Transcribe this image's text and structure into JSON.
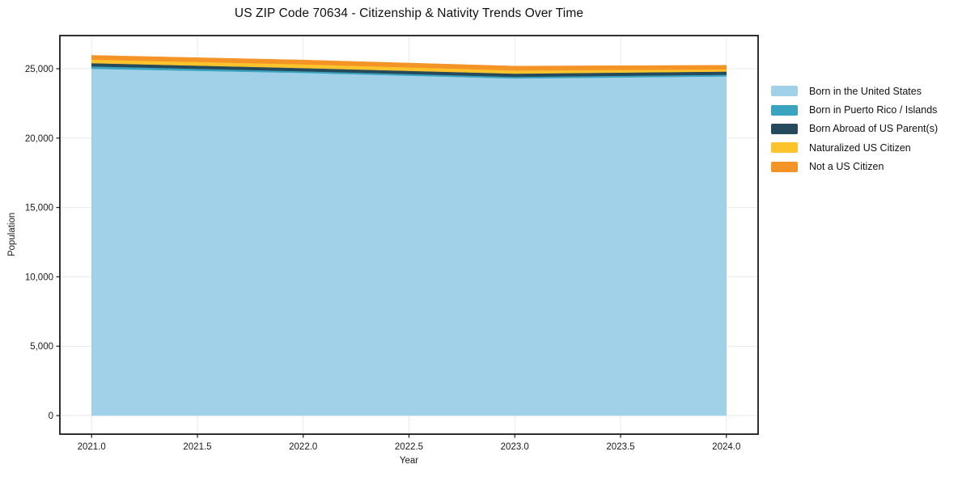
{
  "chart_data": {
    "type": "area",
    "stacked": true,
    "title": "US ZIP Code 70634 - Citizenship & Nativity Trends Over Time",
    "xlabel": "Year",
    "ylabel": "Population",
    "x": [
      2021,
      2022,
      2023,
      2024
    ],
    "series": [
      {
        "name": "Born in the United States",
        "color": "#a0d1e8",
        "values": [
          25000,
          24700,
          24300,
          24450
        ]
      },
      {
        "name": "Born in Puerto Rico / Islands",
        "color": "#3aa3c0",
        "values": [
          175,
          120,
          120,
          120
        ]
      },
      {
        "name": "Born Abroad of US Parent(s)",
        "color": "#254a5c",
        "values": [
          230,
          230,
          230,
          230
        ]
      },
      {
        "name": "Naturalized US Citizen",
        "color": "#fcc32c",
        "values": [
          260,
          270,
          230,
          160
        ]
      },
      {
        "name": "Not a US Citizen",
        "color": "#f59426",
        "values": [
          300,
          310,
          310,
          290
        ]
      }
    ],
    "xlim": [
      2020.85,
      2024.15
    ],
    "ylim": [
      -1340,
      27390
    ],
    "xticks": {
      "values": [
        2021.0,
        2021.5,
        2022.0,
        2022.5,
        2023.0,
        2023.5,
        2024.0
      ],
      "labels": [
        "2021.0",
        "2021.5",
        "2022.0",
        "2022.5",
        "2023.0",
        "2023.5",
        "2024.0"
      ]
    },
    "yticks": {
      "values": [
        0,
        5000,
        10000,
        15000,
        20000,
        25000
      ],
      "labels": [
        "0",
        "5,000",
        "10,000",
        "15,000",
        "20,000",
        "25,000"
      ]
    },
    "grid": true,
    "legend_position": "right"
  },
  "colors": {
    "background": "#ffffff",
    "spine": "#1a1a1a",
    "grid": "#e9e9e9",
    "tick": "#1a1a1a"
  }
}
